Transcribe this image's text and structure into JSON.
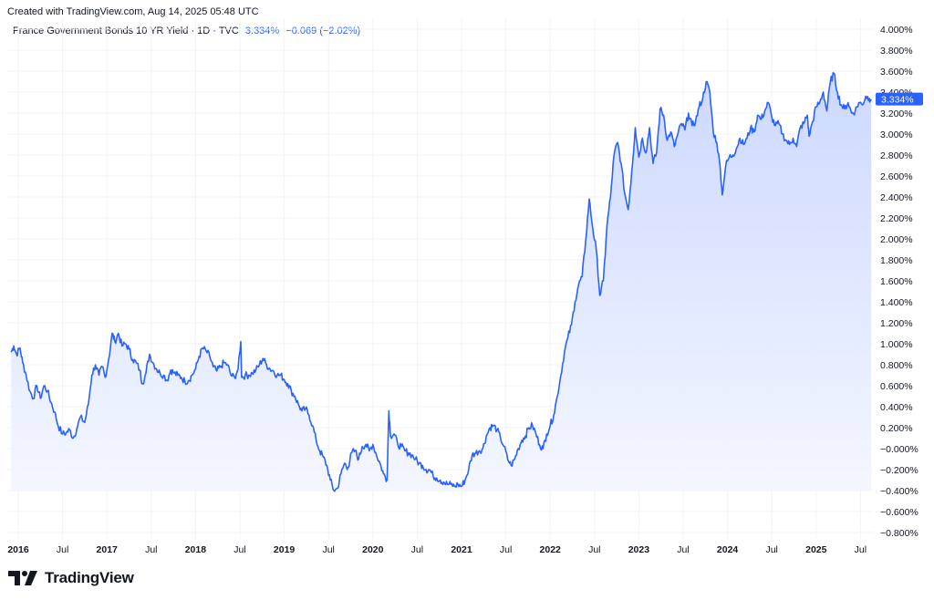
{
  "header": {
    "created_text": "Created with TradingView.com, Aug 14, 2025 05:48 UTC"
  },
  "legend": {
    "symbol": "France Government Bonds 10 YR Yield · 1D · TVC",
    "last_value": "3.334%",
    "change": "−0.069 (−2.02%)"
  },
  "branding": {
    "logo_icon": "tradingview-logo-icon",
    "logo_text": "TradingView"
  },
  "colors": {
    "line": "#2962ff",
    "fill_top": "#c9d6ff",
    "fill_bottom": "#f3f6ff",
    "grid": "#f0f3fa",
    "price_tag": "#2962ff"
  },
  "chart_data": {
    "type": "area",
    "title": "France Government Bonds 10 YR Yield · 1D · TVC",
    "xlabel": "",
    "ylabel": "",
    "ylim": [
      -0.9,
      4.1
    ],
    "y_unit": "%",
    "y_ticks": [
      {
        "value": 4.0,
        "label": "4.000%"
      },
      {
        "value": 3.8,
        "label": "3.800%"
      },
      {
        "value": 3.6,
        "label": "3.600%"
      },
      {
        "value": 3.4,
        "label": "3.400%"
      },
      {
        "value": 3.2,
        "label": "3.200%"
      },
      {
        "value": 3.0,
        "label": "3.000%"
      },
      {
        "value": 2.8,
        "label": "2.800%"
      },
      {
        "value": 2.6,
        "label": "2.600%"
      },
      {
        "value": 2.4,
        "label": "2.400%"
      },
      {
        "value": 2.2,
        "label": "2.200%"
      },
      {
        "value": 2.0,
        "label": "2.000%"
      },
      {
        "value": 1.8,
        "label": "1.800%"
      },
      {
        "value": 1.6,
        "label": "1.600%"
      },
      {
        "value": 1.4,
        "label": "1.400%"
      },
      {
        "value": 1.2,
        "label": "1.200%"
      },
      {
        "value": 1.0,
        "label": "1.000%"
      },
      {
        "value": 0.8,
        "label": "0.800%"
      },
      {
        "value": 0.6,
        "label": "0.600%"
      },
      {
        "value": 0.4,
        "label": "0.400%"
      },
      {
        "value": 0.2,
        "label": "0.200%"
      },
      {
        "value": 0.0,
        "label": "−0.000%"
      },
      {
        "value": -0.2,
        "label": "−0.200%"
      },
      {
        "value": -0.4,
        "label": "−0.400%"
      },
      {
        "value": -0.6,
        "label": "−0.600%"
      },
      {
        "value": -0.8,
        "label": "−0.800%"
      }
    ],
    "x_ticks": [
      {
        "t": 2016.0,
        "label": "2016",
        "bold": true
      },
      {
        "t": 2016.5,
        "label": "Jul",
        "bold": false
      },
      {
        "t": 2017.0,
        "label": "2017",
        "bold": true
      },
      {
        "t": 2017.5,
        "label": "Jul",
        "bold": false
      },
      {
        "t": 2018.0,
        "label": "2018",
        "bold": true
      },
      {
        "t": 2018.5,
        "label": "Jul",
        "bold": false
      },
      {
        "t": 2019.0,
        "label": "2019",
        "bold": true
      },
      {
        "t": 2019.5,
        "label": "Jul",
        "bold": false
      },
      {
        "t": 2020.0,
        "label": "2020",
        "bold": true
      },
      {
        "t": 2020.5,
        "label": "Jul",
        "bold": false
      },
      {
        "t": 2021.0,
        "label": "2021",
        "bold": true
      },
      {
        "t": 2021.5,
        "label": "Jul",
        "bold": false
      },
      {
        "t": 2022.0,
        "label": "2022",
        "bold": true
      },
      {
        "t": 2022.5,
        "label": "Jul",
        "bold": false
      },
      {
        "t": 2023.0,
        "label": "2023",
        "bold": true
      },
      {
        "t": 2023.5,
        "label": "Jul",
        "bold": false
      },
      {
        "t": 2024.0,
        "label": "2024",
        "bold": true
      },
      {
        "t": 2024.5,
        "label": "Jul",
        "bold": false
      },
      {
        "t": 2025.0,
        "label": "2025",
        "bold": true
      },
      {
        "t": 2025.5,
        "label": "Jul",
        "bold": false
      }
    ],
    "last_price": {
      "value": 3.334,
      "label": "3.334%"
    },
    "series": [
      {
        "values": [
          [
            2015.92,
            0.92
          ],
          [
            2015.95,
            0.98
          ],
          [
            2015.98,
            0.9
          ],
          [
            2016.02,
            0.96
          ],
          [
            2016.05,
            0.82
          ],
          [
            2016.09,
            0.7
          ],
          [
            2016.13,
            0.55
          ],
          [
            2016.17,
            0.48
          ],
          [
            2016.21,
            0.6
          ],
          [
            2016.25,
            0.48
          ],
          [
            2016.29,
            0.6
          ],
          [
            2016.33,
            0.55
          ],
          [
            2016.37,
            0.44
          ],
          [
            2016.41,
            0.35
          ],
          [
            2016.45,
            0.22
          ],
          [
            2016.5,
            0.14
          ],
          [
            2016.54,
            0.15
          ],
          [
            2016.58,
            0.18
          ],
          [
            2016.62,
            0.1
          ],
          [
            2016.66,
            0.19
          ],
          [
            2016.7,
            0.3
          ],
          [
            2016.75,
            0.25
          ],
          [
            2016.79,
            0.42
          ],
          [
            2016.83,
            0.7
          ],
          [
            2016.87,
            0.8
          ],
          [
            2016.91,
            0.7
          ],
          [
            2016.95,
            0.78
          ],
          [
            2016.98,
            0.68
          ],
          [
            2017.02,
            0.85
          ],
          [
            2017.06,
            1.1
          ],
          [
            2017.09,
            1.02
          ],
          [
            2017.13,
            1.1
          ],
          [
            2017.17,
            0.98
          ],
          [
            2017.21,
            1.0
          ],
          [
            2017.25,
            0.95
          ],
          [
            2017.29,
            0.85
          ],
          [
            2017.33,
            0.82
          ],
          [
            2017.37,
            0.75
          ],
          [
            2017.4,
            0.62
          ],
          [
            2017.44,
            0.72
          ],
          [
            2017.48,
            0.9
          ],
          [
            2017.52,
            0.82
          ],
          [
            2017.56,
            0.76
          ],
          [
            2017.6,
            0.72
          ],
          [
            2017.64,
            0.7
          ],
          [
            2017.68,
            0.65
          ],
          [
            2017.72,
            0.75
          ],
          [
            2017.76,
            0.72
          ],
          [
            2017.8,
            0.7
          ],
          [
            2017.84,
            0.68
          ],
          [
            2017.88,
            0.64
          ],
          [
            2017.92,
            0.65
          ],
          [
            2017.96,
            0.7
          ],
          [
            2018.0,
            0.76
          ],
          [
            2018.04,
            0.88
          ],
          [
            2018.08,
            0.96
          ],
          [
            2018.12,
            0.93
          ],
          [
            2018.16,
            0.88
          ],
          [
            2018.2,
            0.78
          ],
          [
            2018.24,
            0.74
          ],
          [
            2018.28,
            0.78
          ],
          [
            2018.32,
            0.82
          ],
          [
            2018.36,
            0.8
          ],
          [
            2018.4,
            0.7
          ],
          [
            2018.44,
            0.68
          ],
          [
            2018.48,
            0.76
          ],
          [
            2018.51,
            1.02
          ],
          [
            2018.52,
            0.68
          ],
          [
            2018.56,
            0.7
          ],
          [
            2018.6,
            0.7
          ],
          [
            2018.64,
            0.72
          ],
          [
            2018.68,
            0.75
          ],
          [
            2018.72,
            0.8
          ],
          [
            2018.76,
            0.86
          ],
          [
            2018.8,
            0.8
          ],
          [
            2018.84,
            0.76
          ],
          [
            2018.88,
            0.74
          ],
          [
            2018.92,
            0.7
          ],
          [
            2018.96,
            0.7
          ],
          [
            2019.0,
            0.66
          ],
          [
            2019.04,
            0.62
          ],
          [
            2019.08,
            0.55
          ],
          [
            2019.12,
            0.5
          ],
          [
            2019.16,
            0.42
          ],
          [
            2019.2,
            0.36
          ],
          [
            2019.24,
            0.38
          ],
          [
            2019.28,
            0.32
          ],
          [
            2019.32,
            0.22
          ],
          [
            2019.36,
            0.08
          ],
          [
            2019.4,
            -0.02
          ],
          [
            2019.44,
            -0.08
          ],
          [
            2019.48,
            -0.16
          ],
          [
            2019.52,
            -0.3
          ],
          [
            2019.56,
            -0.4
          ],
          [
            2019.6,
            -0.38
          ],
          [
            2019.64,
            -0.24
          ],
          [
            2019.68,
            -0.14
          ],
          [
            2019.72,
            -0.18
          ],
          [
            2019.76,
            -0.04
          ],
          [
            2019.8,
            -0.02
          ],
          [
            2019.84,
            -0.1
          ],
          [
            2019.88,
            0.02
          ],
          [
            2019.92,
            0.04
          ],
          [
            2019.96,
            -0.02
          ],
          [
            2020.0,
            0.04
          ],
          [
            2020.04,
            -0.06
          ],
          [
            2020.08,
            -0.14
          ],
          [
            2020.12,
            -0.24
          ],
          [
            2020.16,
            -0.3
          ],
          [
            2020.18,
            0.36
          ],
          [
            2020.2,
            0.12
          ],
          [
            2020.24,
            0.14
          ],
          [
            2020.28,
            0.04
          ],
          [
            2020.32,
            0.02
          ],
          [
            2020.36,
            -0.02
          ],
          [
            2020.4,
            -0.04
          ],
          [
            2020.44,
            -0.06
          ],
          [
            2020.48,
            -0.1
          ],
          [
            2020.52,
            -0.14
          ],
          [
            2020.56,
            -0.16
          ],
          [
            2020.6,
            -0.2
          ],
          [
            2020.64,
            -0.2
          ],
          [
            2020.68,
            -0.26
          ],
          [
            2020.72,
            -0.28
          ],
          [
            2020.76,
            -0.3
          ],
          [
            2020.8,
            -0.32
          ],
          [
            2020.84,
            -0.34
          ],
          [
            2020.88,
            -0.34
          ],
          [
            2020.92,
            -0.36
          ],
          [
            2020.96,
            -0.34
          ],
          [
            2021.0,
            -0.36
          ],
          [
            2021.04,
            -0.3
          ],
          [
            2021.08,
            -0.2
          ],
          [
            2021.12,
            -0.06
          ],
          [
            2021.16,
            -0.04
          ],
          [
            2021.2,
            -0.02
          ],
          [
            2021.24,
            0.0
          ],
          [
            2021.28,
            0.12
          ],
          [
            2021.32,
            0.2
          ],
          [
            2021.36,
            0.22
          ],
          [
            2021.4,
            0.18
          ],
          [
            2021.44,
            0.1
          ],
          [
            2021.48,
            0.02
          ],
          [
            2021.52,
            -0.1
          ],
          [
            2021.56,
            -0.16
          ],
          [
            2021.6,
            -0.1
          ],
          [
            2021.64,
            0.0
          ],
          [
            2021.68,
            0.08
          ],
          [
            2021.72,
            0.12
          ],
          [
            2021.76,
            0.2
          ],
          [
            2021.8,
            0.22
          ],
          [
            2021.84,
            0.14
          ],
          [
            2021.88,
            0.04
          ],
          [
            2021.92,
            0.0
          ],
          [
            2021.96,
            0.14
          ],
          [
            2022.0,
            0.22
          ],
          [
            2022.04,
            0.32
          ],
          [
            2022.08,
            0.5
          ],
          [
            2022.12,
            0.7
          ],
          [
            2022.16,
            0.92
          ],
          [
            2022.2,
            1.06
          ],
          [
            2022.24,
            1.18
          ],
          [
            2022.28,
            1.4
          ],
          [
            2022.32,
            1.56
          ],
          [
            2022.36,
            1.64
          ],
          [
            2022.4,
            1.98
          ],
          [
            2022.44,
            2.38
          ],
          [
            2022.48,
            2.1
          ],
          [
            2022.52,
            1.9
          ],
          [
            2022.56,
            1.46
          ],
          [
            2022.6,
            1.6
          ],
          [
            2022.64,
            2.12
          ],
          [
            2022.68,
            2.4
          ],
          [
            2022.72,
            2.8
          ],
          [
            2022.76,
            2.92
          ],
          [
            2022.8,
            2.72
          ],
          [
            2022.84,
            2.44
          ],
          [
            2022.88,
            2.28
          ],
          [
            2022.92,
            2.64
          ],
          [
            2022.96,
            3.06
          ],
          [
            2023.0,
            2.78
          ],
          [
            2023.04,
            2.96
          ],
          [
            2023.08,
            2.82
          ],
          [
            2023.12,
            3.06
          ],
          [
            2023.16,
            2.72
          ],
          [
            2023.2,
            2.82
          ],
          [
            2023.24,
            3.24
          ],
          [
            2023.28,
            3.18
          ],
          [
            2023.32,
            2.94
          ],
          [
            2023.36,
            3.02
          ],
          [
            2023.4,
            2.88
          ],
          [
            2023.44,
            3.0
          ],
          [
            2023.48,
            3.1
          ],
          [
            2023.52,
            3.04
          ],
          [
            2023.56,
            3.2
          ],
          [
            2023.6,
            3.08
          ],
          [
            2023.64,
            3.12
          ],
          [
            2023.68,
            3.26
          ],
          [
            2023.72,
            3.34
          ],
          [
            2023.76,
            3.5
          ],
          [
            2023.8,
            3.4
          ],
          [
            2023.84,
            3.02
          ],
          [
            2023.88,
            2.92
          ],
          [
            2023.92,
            2.66
          ],
          [
            2023.94,
            2.42
          ],
          [
            2023.98,
            2.7
          ],
          [
            2024.02,
            2.78
          ],
          [
            2024.06,
            2.8
          ],
          [
            2024.1,
            2.86
          ],
          [
            2024.14,
            2.96
          ],
          [
            2024.18,
            2.9
          ],
          [
            2024.22,
            2.96
          ],
          [
            2024.26,
            3.06
          ],
          [
            2024.3,
            3.02
          ],
          [
            2024.34,
            3.18
          ],
          [
            2024.38,
            3.14
          ],
          [
            2024.42,
            3.22
          ],
          [
            2024.46,
            3.3
          ],
          [
            2024.5,
            3.16
          ],
          [
            2024.54,
            3.08
          ],
          [
            2024.58,
            3.1
          ],
          [
            2024.62,
            3.0
          ],
          [
            2024.66,
            2.94
          ],
          [
            2024.7,
            2.9
          ],
          [
            2024.74,
            2.96
          ],
          [
            2024.78,
            2.88
          ],
          [
            2024.82,
            3.06
          ],
          [
            2024.86,
            3.1
          ],
          [
            2024.9,
            3.18
          ],
          [
            2024.92,
            2.98
          ],
          [
            2024.96,
            3.12
          ],
          [
            2025.0,
            3.26
          ],
          [
            2025.04,
            3.3
          ],
          [
            2025.08,
            3.4
          ],
          [
            2025.12,
            3.22
          ],
          [
            2025.16,
            3.5
          ],
          [
            2025.2,
            3.58
          ],
          [
            2025.24,
            3.4
          ],
          [
            2025.28,
            3.28
          ],
          [
            2025.32,
            3.24
          ],
          [
            2025.36,
            3.3
          ],
          [
            2025.4,
            3.2
          ],
          [
            2025.44,
            3.22
          ],
          [
            2025.48,
            3.3
          ],
          [
            2025.52,
            3.28
          ],
          [
            2025.56,
            3.36
          ],
          [
            2025.6,
            3.34
          ],
          [
            2025.62,
            3.334
          ]
        ]
      }
    ],
    "x_range": [
      2015.92,
      2025.65
    ],
    "grid": true,
    "legend": "top-left"
  }
}
